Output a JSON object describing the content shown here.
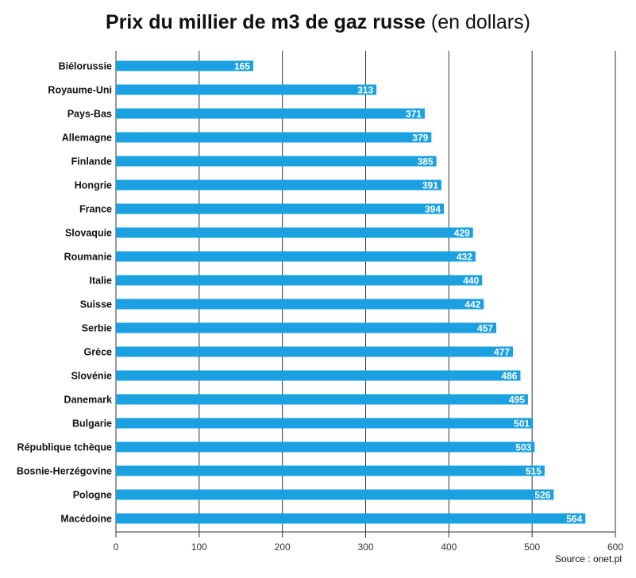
{
  "chart_data": {
    "type": "bar",
    "orientation": "horizontal",
    "title": "Prix du millier de m3 de gaz russe",
    "title_unit": "(en dollars)",
    "categories": [
      "Biélorussie",
      "Royaume-Uni",
      "Pays-Bas",
      "Allemagne",
      "Finlande",
      "Hongrie",
      "France",
      "Slovaquie",
      "Roumanie",
      "Italie",
      "Suisse",
      "Serbie",
      "Grèce",
      "Slovénie",
      "Danemark",
      "Bulgarie",
      "République tchèque",
      "Bosnie-Herzégovine",
      "Pologne",
      "Macédoine"
    ],
    "values": [
      165,
      313,
      371,
      379,
      385,
      391,
      394,
      429,
      432,
      440,
      442,
      457,
      477,
      486,
      495,
      501,
      503,
      515,
      526,
      564
    ],
    "value_labels": [
      "165",
      "313",
      "371",
      "379",
      "385",
      "391",
      "394",
      "429",
      "432",
      "440",
      "442",
      "457",
      "477",
      "486",
      "495",
      "501",
      "503",
      "515",
      "526",
      "564"
    ],
    "xlim": [
      0,
      600
    ],
    "xticks": [
      "0",
      "100",
      "200",
      "300",
      "400",
      "500",
      "600"
    ],
    "grid": "vertical",
    "bar_color": "#1ba1e2",
    "source": "Source : onet.pl"
  }
}
